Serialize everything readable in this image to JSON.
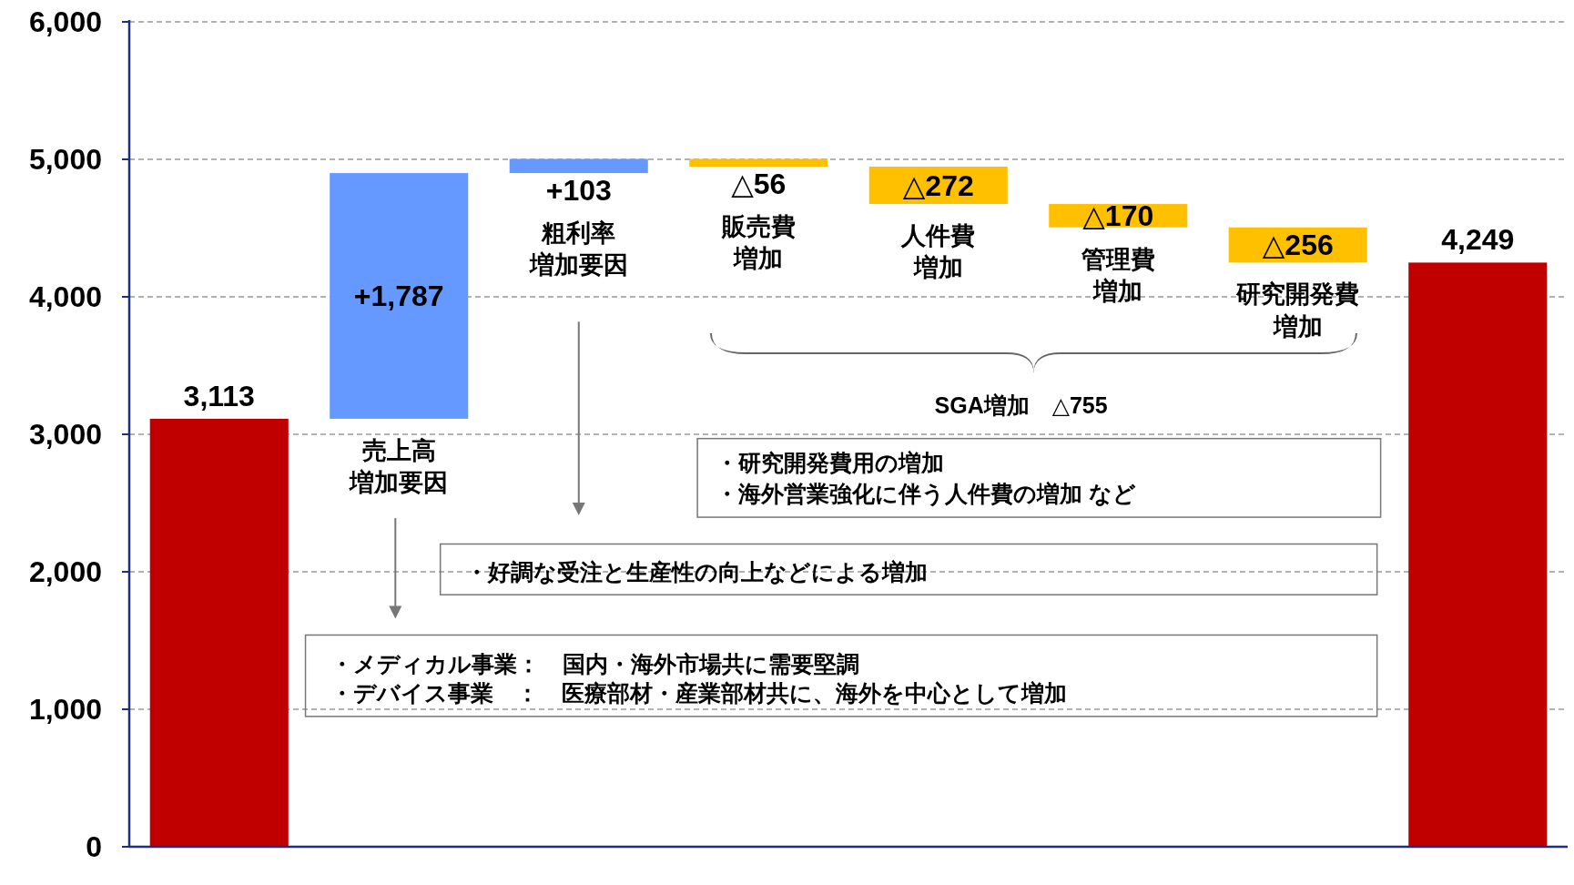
{
  "chart_data": {
    "type": "bar",
    "categories": [
      null,
      "売上高増加要因",
      "粗利率増加要因",
      "販売費増加",
      "人件費増加",
      "管理費増加",
      "研究開発費増加",
      null
    ],
    "values": [
      3113,
      1787,
      103,
      -56,
      -272,
      -170,
      -256,
      4249
    ],
    "base": [
      0,
      3113,
      4900,
      5003,
      4947,
      4675,
      4505,
      0
    ],
    "colors": [
      "#c00000",
      "#6699ff",
      "#6699ff",
      "#ffc000",
      "#ffc000",
      "#ffc000",
      "#ffc000",
      "#c00000"
    ],
    "value_labels": [
      "3,113",
      "+1,787",
      "+103",
      "△56",
      "△272",
      "△170",
      "△256",
      "4,249"
    ],
    "ylim": [
      0,
      6000
    ],
    "yticks": [
      0,
      {
        "value": 1000,
        "label": "1,000"
      },
      {
        "value": 2000,
        "label": "2,000"
      },
      {
        "value": 3000,
        "label": "3,000"
      },
      {
        "value": 4000,
        "label": "4,000"
      },
      {
        "value": 5000,
        "label": "5,000"
      },
      {
        "value": 6000,
        "label": "6,000"
      }
    ],
    "grid": "y",
    "annotations": [
      "SGA増加　△755",
      "・研究開発費用の増加",
      "・海外営業強化に伴う人件費の増加 など",
      "・好調な受注と生産性の向上などによる増加",
      "・メディカル事業：　国内・海外市場共に需要堅調",
      "・デバイス事業　：　医療部材・産業部材共に、海外を中心として増加"
    ]
  }
}
